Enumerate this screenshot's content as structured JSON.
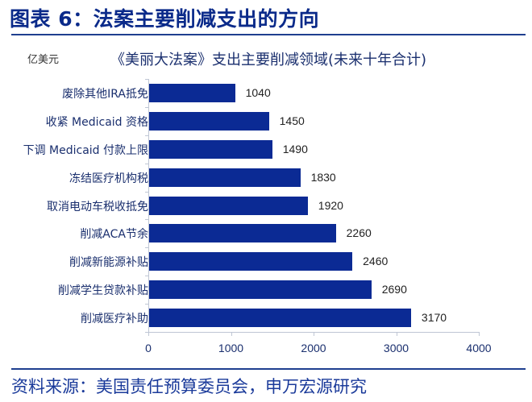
{
  "header": {
    "title": "图表 6：法案主要削减支出的方向"
  },
  "chart_data": {
    "type": "bar",
    "orientation": "horizontal",
    "title": "《美丽大法案》支出主要削减领域(未来十年合计)",
    "unit_label": "亿美元",
    "xlabel": "",
    "ylabel": "",
    "xlim": [
      0,
      4000
    ],
    "x_ticks": [
      "0",
      "1000",
      "2000",
      "3000",
      "4000"
    ],
    "categories": [
      "废除其他IRA抵免",
      "收紧 Medicaid 资格",
      "下调 Medicaid 付款上限",
      "冻结医疗机构税",
      "取消电动车税收抵免",
      "削减ACA节余",
      "削减新能源补贴",
      "削减学生贷款补贴",
      "削减医疗补助"
    ],
    "values": [
      1040,
      1450,
      1490,
      1830,
      1920,
      2260,
      2460,
      2690,
      3170
    ],
    "value_labels": [
      "1040",
      "1450",
      "1490",
      "1830",
      "1920",
      "2260",
      "2460",
      "2690",
      "3170"
    ],
    "bar_color": "#0b2a94",
    "grid": false,
    "legend": false
  },
  "footer": {
    "source": "资料来源：美国责任预算委员会，申万宏源研究"
  }
}
